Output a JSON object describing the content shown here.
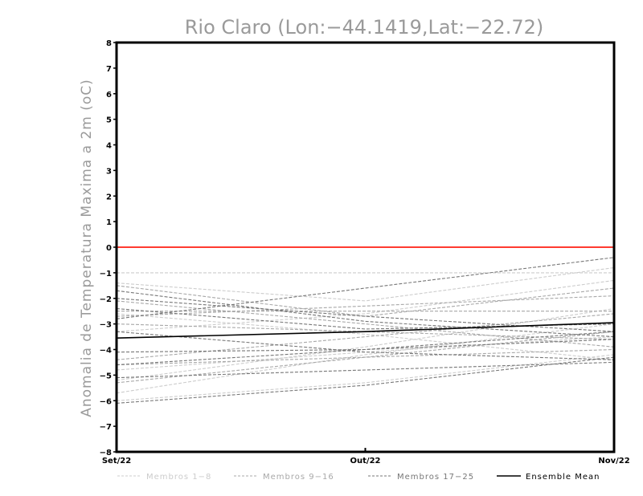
{
  "chart_data": {
    "type": "line",
    "title": "Rio Claro (Lon:−44.1419,Lat:−22.72)",
    "ylabel": "Anomalia de Temperatura Maxima a 2m (oC)",
    "xlabel": "",
    "x": [
      "Set/22",
      "Out/22",
      "Nov/22"
    ],
    "ylim": [
      -8,
      8
    ],
    "yticks": [
      8,
      7,
      6,
      5,
      4,
      3,
      2,
      1,
      0,
      -1,
      -2,
      -3,
      -4,
      -5,
      -6,
      -7,
      -8
    ],
    "ytick_labels": [
      "8",
      "7",
      "6",
      "5",
      "4",
      "3",
      "2",
      "1",
      "0",
      "−1",
      "−2",
      "−3",
      "−4",
      "−5",
      "−6",
      "−7",
      "−8"
    ],
    "grid": false,
    "reference_line": {
      "y": 0,
      "color": "#ff3b30"
    },
    "colors": {
      "members_1_8": "#cccccc",
      "members_9_16": "#a8a8a8",
      "members_17_25": "#777777",
      "ensemble_mean": "#000000",
      "axis": "#000000",
      "title": "#9a9a9a"
    },
    "legend": [
      {
        "label": "Membros 1−8",
        "group": "members_1_8"
      },
      {
        "label": "Membros 9−16",
        "group": "members_9_16"
      },
      {
        "label": "Membros 17−25",
        "group": "members_17_25"
      },
      {
        "label": "Ensemble Mean",
        "group": "ensemble_mean"
      }
    ],
    "series": [
      {
        "group": "members_1_8",
        "values": [
          -1.0,
          -1.0,
          -1.0
        ]
      },
      {
        "group": "members_1_8",
        "values": [
          -1.4,
          -2.1,
          -0.8
        ]
      },
      {
        "group": "members_1_8",
        "values": [
          -3.3,
          -2.6,
          -1.3
        ]
      },
      {
        "group": "members_1_8",
        "values": [
          -5.2,
          -3.9,
          -2.4
        ]
      },
      {
        "group": "members_1_8",
        "values": [
          -5.7,
          -4.2,
          -3.0
        ]
      },
      {
        "group": "members_1_8",
        "values": [
          -6.0,
          -5.3,
          -4.2
        ]
      },
      {
        "group": "members_1_8",
        "values": [
          -2.6,
          -3.4,
          -4.4
        ]
      },
      {
        "group": "members_1_8",
        "values": [
          -4.8,
          -4.1,
          -3.5
        ]
      },
      {
        "group": "members_9_16",
        "values": [
          -1.5,
          -2.7,
          -1.6
        ]
      },
      {
        "group": "members_9_16",
        "values": [
          -2.5,
          -2.5,
          -2.5
        ]
      },
      {
        "group": "members_9_16",
        "values": [
          -2.7,
          -2.3,
          -1.9
        ]
      },
      {
        "group": "members_9_16",
        "values": [
          -4.4,
          -3.5,
          -2.6
        ]
      },
      {
        "group": "members_9_16",
        "values": [
          -5.3,
          -4.3,
          -3.3
        ]
      },
      {
        "group": "members_9_16",
        "values": [
          -2.1,
          -3.0,
          -3.9
        ]
      },
      {
        "group": "members_9_16",
        "values": [
          -3.0,
          -3.3,
          -3.6
        ]
      },
      {
        "group": "members_9_16",
        "values": [
          -4.6,
          -4.3,
          -4.0
        ]
      },
      {
        "group": "members_17_25",
        "values": [
          -2.8,
          -1.6,
          -0.4
        ]
      },
      {
        "group": "members_17_25",
        "values": [
          -2.0,
          -2.7,
          -3.3
        ]
      },
      {
        "group": "members_17_25",
        "values": [
          -1.7,
          -2.9,
          -3.5
        ]
      },
      {
        "group": "members_17_25",
        "values": [
          -2.4,
          -3.2,
          -3.0
        ]
      },
      {
        "group": "members_17_25",
        "values": [
          -4.1,
          -4.0,
          -3.3
        ]
      },
      {
        "group": "members_17_25",
        "values": [
          -4.6,
          -4.0,
          -3.6
        ]
      },
      {
        "group": "members_17_25",
        "values": [
          -5.1,
          -4.8,
          -4.5
        ]
      },
      {
        "group": "members_17_25",
        "values": [
          -6.1,
          -5.4,
          -4.3
        ]
      },
      {
        "group": "members_17_25",
        "values": [
          -3.3,
          -4.1,
          -4.4
        ]
      },
      {
        "group": "ensemble_mean",
        "values": [
          -3.55,
          -3.3,
          -2.95
        ]
      }
    ]
  }
}
